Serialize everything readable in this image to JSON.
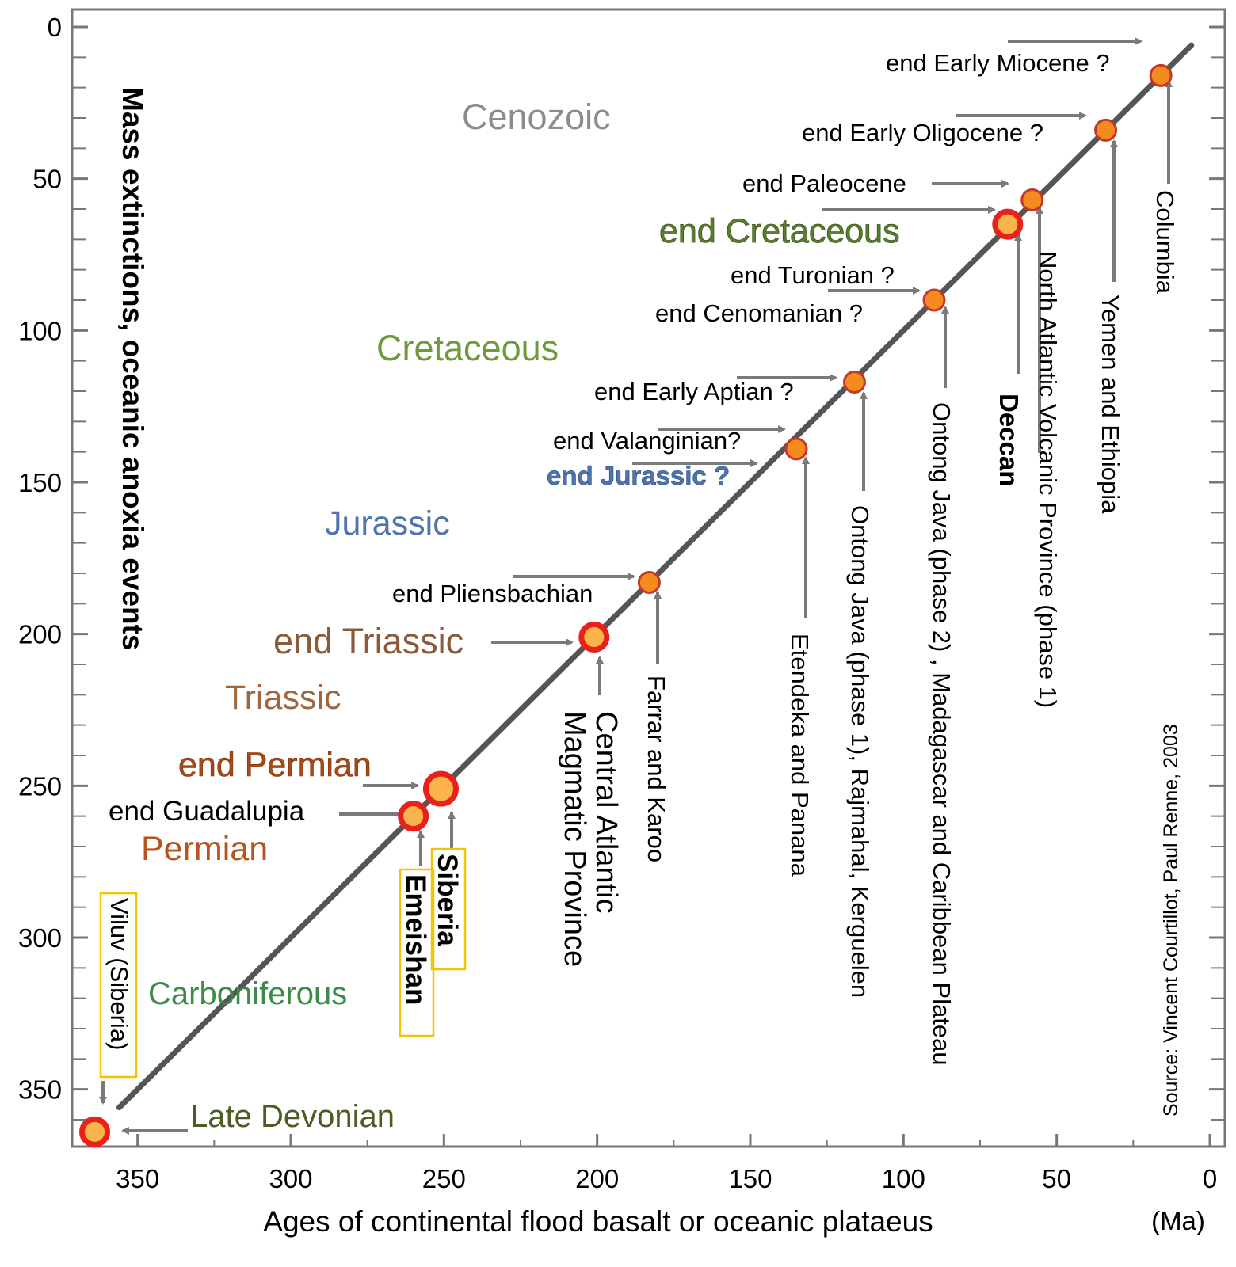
{
  "chart_data": {
    "type": "scatter",
    "xlabel": "Ages of continental flood basalt or oceanic plataeus",
    "ylabel": "Mass extinctions, oceanic anoxia events",
    "unit": "(Ma)",
    "xlim": [
      370,
      0
    ],
    "ylim": [
      0,
      370
    ],
    "x_ticks": [
      "350",
      "300",
      "250",
      "200",
      "150",
      "100",
      "50",
      "0"
    ],
    "y_ticks": [
      "0",
      "50",
      "100",
      "150",
      "200",
      "250",
      "300",
      "350"
    ],
    "grid": false,
    "source": "Source: Vincent Courtillot, Paul Renne, 2003",
    "colors": {
      "frame": "#777777",
      "trend_line": "#555555",
      "arrow": "#7a7a7a",
      "point_fill": "#f58a1f",
      "major_ring": "#e8211b",
      "major_fill": "#fbb34c",
      "highlight_box": "#f5c400",
      "period_cenozoic": "#8c8c8c",
      "period_cretaceous": "#6f9a3c",
      "period_jurassic": "#4f73ad",
      "period_triassic": "#a0663f",
      "period_permian": "#b5541c",
      "period_carboniferous": "#3d8a4a",
      "period_devonian": "#4a5d23"
    },
    "periods": [
      "Cenozoic",
      "Cretaceous",
      "Jurassic",
      "Triassic",
      "Permian",
      "Carboniferous"
    ],
    "points": [
      {
        "province": "Columbia",
        "extinction": "end Early Miocene ?",
        "x": 16,
        "y": 16,
        "major": false
      },
      {
        "province": "Yemen and Ethiopia",
        "extinction": "end Early Oligocene ?",
        "x": 34,
        "y": 34,
        "major": false
      },
      {
        "province": "North Atlantic Volcanic Province (phase 1)",
        "extinction": "end Paleocene",
        "x": 58,
        "y": 57,
        "major": false
      },
      {
        "province": "Deccan",
        "extinction": "end Cretaceous",
        "x": 66,
        "y": 65,
        "major": true
      },
      {
        "province": "Ontong Java (phase 2) , Madagascar and Caribbean Plateau",
        "extinction": "end Turonian ? / end Cenomanian ?",
        "x": 90,
        "y": 90,
        "major": false
      },
      {
        "province": "Ontong Java (phase 1), Rajmahal, Kerguelen",
        "extinction": "end Early Aptian ?",
        "x": 116,
        "y": 117,
        "major": false
      },
      {
        "province": "Etendeka and Panana",
        "extinction": "end Valanginian? / end Jurassic ?",
        "x": 135,
        "y": 139,
        "major": false
      },
      {
        "province": "Farrar and Karoo",
        "extinction": "end Pliensbachian",
        "x": 183,
        "y": 183,
        "major": false
      },
      {
        "province": "Central Atlantic Magmatic Province",
        "extinction": "end Triassic",
        "x": 201,
        "y": 201,
        "major": true
      },
      {
        "province": "Siberia",
        "extinction": "end Permian",
        "x": 251,
        "y": 251,
        "major": true
      },
      {
        "province": "Emeishan",
        "extinction": "end Guadalupia",
        "x": 260,
        "y": 260,
        "major": true
      },
      {
        "province": "Viluv (Siberia)",
        "extinction": "Late Devonian",
        "x": 364,
        "y": 364,
        "major": true
      }
    ]
  },
  "labels": {
    "cenozoic": "Cenozoic",
    "cretaceous": "Cretaceous",
    "jurassic": "Jurassic",
    "triassic": "Triassic",
    "permian": "Permian",
    "carboniferous": "Carboniferous",
    "late_devonian": "Late Devonian",
    "end_early_miocene": "end Early Miocene ?",
    "end_early_oligocene": "end Early Oligocene ?",
    "end_paleocene": "end Paleocene",
    "end_cretaceous": "end Cretaceous",
    "end_turonian": "end Turonian ?",
    "end_cenomanian": "end Cenomanian ?",
    "end_early_aptian": "end Early Aptian ?",
    "end_valanginian": "end Valanginian?",
    "end_jurassic": "end Jurassic ?",
    "end_pliensbachian": "end Pliensbachian",
    "end_triassic": "end Triassic",
    "end_permian": "end Permian",
    "end_guadalupia": "end Guadalupia",
    "columbia": "Columbia",
    "yemen": "Yemen and Ethiopia",
    "navp": "North Atlantic Volcanic Province (phase 1)",
    "deccan": "Deccan",
    "ontong2": "Ontong Java (phase 2) , Madagascar and Caribbean Plateau",
    "ontong1": "Ontong Java (phase 1), Rajmahal, Kerguelen",
    "etendeka": "Etendeka  and Panana",
    "farrar": "Farrar and Karoo",
    "camp_line1": "Central Atlantic",
    "camp_line2": "Magmatic Province",
    "siberia": "Siberia",
    "emeishan": "Emeishan",
    "viluv": "Viluv (Siberia)"
  }
}
